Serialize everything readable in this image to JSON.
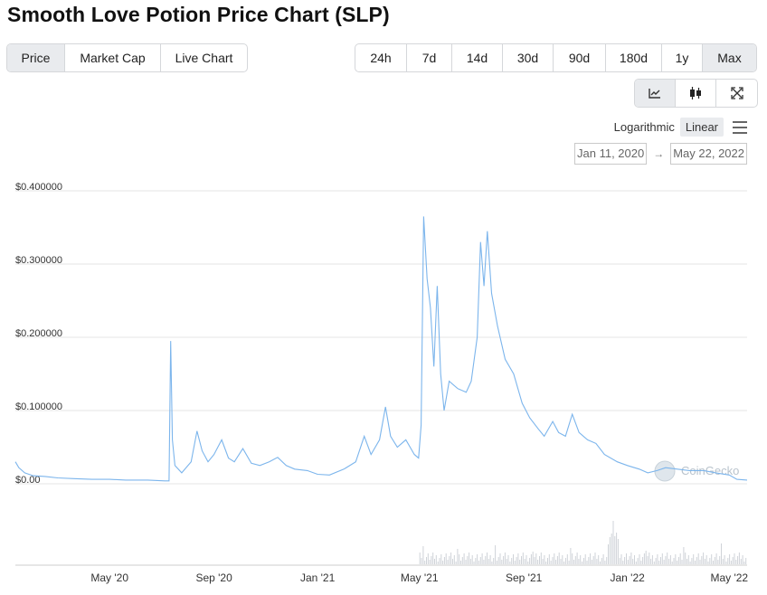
{
  "page": {
    "title": "Smooth Love Potion Price Chart (SLP)"
  },
  "view_tabs": [
    {
      "label": "Price",
      "active": true
    },
    {
      "label": "Market Cap",
      "active": false
    },
    {
      "label": "Live Chart",
      "active": false
    }
  ],
  "range_tabs": [
    {
      "label": "24h",
      "active": false
    },
    {
      "label": "7d",
      "active": false
    },
    {
      "label": "14d",
      "active": false
    },
    {
      "label": "30d",
      "active": false
    },
    {
      "label": "90d",
      "active": false
    },
    {
      "label": "180d",
      "active": false
    },
    {
      "label": "1y",
      "active": false
    },
    {
      "label": "Max",
      "active": true
    }
  ],
  "tools": [
    {
      "icon": "line-chart-icon",
      "active": true
    },
    {
      "icon": "candlestick-icon",
      "active": false
    },
    {
      "icon": "fullscreen-icon",
      "active": false
    }
  ],
  "scale": {
    "logarithmic": "Logarithmic",
    "linear": "Linear",
    "selected": "Linear"
  },
  "dates": {
    "from": "Jan 11, 2020",
    "arrow": "→",
    "to": "May 22, 2022"
  },
  "watermark": "CoinGecko",
  "colors": {
    "line": "#7cb5ec",
    "volume": "#cfd3d8",
    "grid": "#e6e6e6",
    "active_bg": "#e9ebee"
  },
  "chart_data": {
    "type": "line",
    "title": "",
    "xlabel": "",
    "ylabel": "",
    "y_tick_labels": [
      "$0.00",
      "$0.100000",
      "$0.200000",
      "$0.300000",
      "$0.400000"
    ],
    "y_ticks": [
      0,
      0.1,
      0.2,
      0.3,
      0.4
    ],
    "ylim": [
      0,
      0.4
    ],
    "x_tick_labels": [
      "May '20",
      "Sep '20",
      "Jan '21",
      "May '21",
      "Sep '21",
      "Jan '22",
      "May '22"
    ],
    "x_ticks": [
      "2020-05-01",
      "2020-09-01",
      "2021-01-01",
      "2021-05-01",
      "2021-09-01",
      "2022-01-01",
      "2022-05-01"
    ],
    "xlim": [
      "2020-01-11",
      "2022-05-22"
    ],
    "grid": true,
    "series": [
      {
        "values": [
          [
            "2020-01-11",
            0.03
          ],
          [
            "2020-01-15",
            0.022
          ],
          [
            "2020-01-22",
            0.015
          ],
          [
            "2020-02-01",
            0.011
          ],
          [
            "2020-02-15",
            0.01
          ],
          [
            "2020-03-01",
            0.008
          ],
          [
            "2020-03-20",
            0.007
          ],
          [
            "2020-04-10",
            0.006
          ],
          [
            "2020-05-01",
            0.006
          ],
          [
            "2020-05-20",
            0.005
          ],
          [
            "2020-06-15",
            0.005
          ],
          [
            "2020-07-05",
            0.004
          ],
          [
            "2020-07-10",
            0.004
          ],
          [
            "2020-07-12",
            0.195
          ],
          [
            "2020-07-14",
            0.06
          ],
          [
            "2020-07-17",
            0.025
          ],
          [
            "2020-07-25",
            0.015
          ],
          [
            "2020-08-05",
            0.03
          ],
          [
            "2020-08-12",
            0.072
          ],
          [
            "2020-08-18",
            0.045
          ],
          [
            "2020-08-25",
            0.03
          ],
          [
            "2020-09-01",
            0.04
          ],
          [
            "2020-09-10",
            0.06
          ],
          [
            "2020-09-18",
            0.035
          ],
          [
            "2020-09-25",
            0.03
          ],
          [
            "2020-10-05",
            0.048
          ],
          [
            "2020-10-15",
            0.028
          ],
          [
            "2020-10-25",
            0.025
          ],
          [
            "2020-11-05",
            0.03
          ],
          [
            "2020-11-15",
            0.036
          ],
          [
            "2020-11-25",
            0.025
          ],
          [
            "2020-12-05",
            0.02
          ],
          [
            "2020-12-20",
            0.018
          ],
          [
            "2021-01-01",
            0.013
          ],
          [
            "2021-01-15",
            0.012
          ],
          [
            "2021-02-01",
            0.02
          ],
          [
            "2021-02-15",
            0.03
          ],
          [
            "2021-02-25",
            0.065
          ],
          [
            "2021-03-05",
            0.04
          ],
          [
            "2021-03-15",
            0.06
          ],
          [
            "2021-03-22",
            0.105
          ],
          [
            "2021-03-28",
            0.065
          ],
          [
            "2021-04-05",
            0.05
          ],
          [
            "2021-04-15",
            0.06
          ],
          [
            "2021-04-25",
            0.04
          ],
          [
            "2021-04-30",
            0.035
          ],
          [
            "2021-05-03",
            0.08
          ],
          [
            "2021-05-06",
            0.365
          ],
          [
            "2021-05-10",
            0.28
          ],
          [
            "2021-05-14",
            0.24
          ],
          [
            "2021-05-18",
            0.16
          ],
          [
            "2021-05-22",
            0.27
          ],
          [
            "2021-05-26",
            0.15
          ],
          [
            "2021-05-30",
            0.1
          ],
          [
            "2021-06-05",
            0.14
          ],
          [
            "2021-06-15",
            0.13
          ],
          [
            "2021-06-25",
            0.125
          ],
          [
            "2021-07-01",
            0.14
          ],
          [
            "2021-07-08",
            0.2
          ],
          [
            "2021-07-12",
            0.33
          ],
          [
            "2021-07-16",
            0.27
          ],
          [
            "2021-07-20",
            0.345
          ],
          [
            "2021-07-25",
            0.26
          ],
          [
            "2021-08-01",
            0.215
          ],
          [
            "2021-08-10",
            0.17
          ],
          [
            "2021-08-20",
            0.15
          ],
          [
            "2021-08-30",
            0.11
          ],
          [
            "2021-09-08",
            0.09
          ],
          [
            "2021-09-18",
            0.075
          ],
          [
            "2021-09-25",
            0.065
          ],
          [
            "2021-10-05",
            0.085
          ],
          [
            "2021-10-12",
            0.07
          ],
          [
            "2021-10-20",
            0.065
          ],
          [
            "2021-10-28",
            0.095
          ],
          [
            "2021-11-05",
            0.07
          ],
          [
            "2021-11-15",
            0.06
          ],
          [
            "2021-11-25",
            0.055
          ],
          [
            "2021-12-05",
            0.04
          ],
          [
            "2021-12-20",
            0.03
          ],
          [
            "2022-01-01",
            0.025
          ],
          [
            "2022-01-15",
            0.02
          ],
          [
            "2022-01-25",
            0.015
          ],
          [
            "2022-02-05",
            0.018
          ],
          [
            "2022-02-15",
            0.022
          ],
          [
            "2022-03-01",
            0.02
          ],
          [
            "2022-03-15",
            0.018
          ],
          [
            "2022-04-01",
            0.018
          ],
          [
            "2022-04-15",
            0.015
          ],
          [
            "2022-05-01",
            0.012
          ],
          [
            "2022-05-10",
            0.006
          ],
          [
            "2022-05-22",
            0.005
          ]
        ]
      }
    ]
  }
}
